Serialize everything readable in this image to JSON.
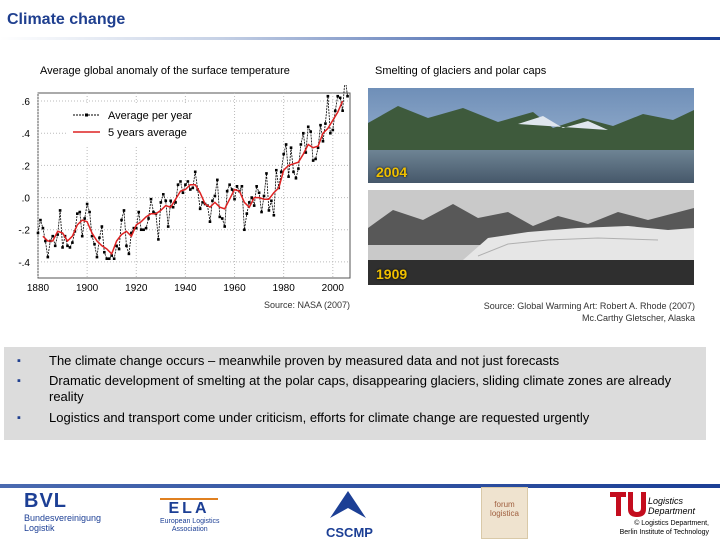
{
  "page": {
    "title": "Climate change"
  },
  "chart_data": {
    "type": "line",
    "title": "Average global anomaly of the surface temperature",
    "xlabel": "",
    "ylabel": "",
    "xlim": [
      1880,
      2007
    ],
    "ylim": [
      -0.5,
      0.65
    ],
    "xticks": [
      1880,
      1900,
      1920,
      1940,
      1960,
      1980,
      2000
    ],
    "xtick_labels": [
      "1880",
      "1900",
      "1920",
      "1940",
      "1960",
      "1980",
      "2000"
    ],
    "yticks": [
      0.6,
      0.4,
      0.2,
      0.0,
      -0.2,
      -0.4
    ],
    "ytick_labels": [
      ".6",
      ".4",
      ".2",
      ".0",
      "-.2",
      "-.4"
    ],
    "grid": true,
    "legend_position": "top-left",
    "series": [
      {
        "name": "Average per year",
        "style": "dotted-markers",
        "color": "#000000",
        "x": [
          1880,
          1881,
          1882,
          1883,
          1884,
          1885,
          1886,
          1887,
          1888,
          1889,
          1890,
          1891,
          1892,
          1893,
          1894,
          1895,
          1896,
          1897,
          1898,
          1899,
          1900,
          1901,
          1902,
          1903,
          1904,
          1905,
          1906,
          1907,
          1908,
          1909,
          1910,
          1911,
          1912,
          1913,
          1914,
          1915,
          1916,
          1917,
          1918,
          1919,
          1920,
          1921,
          1922,
          1923,
          1924,
          1925,
          1926,
          1927,
          1928,
          1929,
          1930,
          1931,
          1932,
          1933,
          1934,
          1935,
          1936,
          1937,
          1938,
          1939,
          1940,
          1941,
          1942,
          1943,
          1944,
          1945,
          1946,
          1947,
          1948,
          1949,
          1950,
          1951,
          1952,
          1953,
          1954,
          1955,
          1956,
          1957,
          1958,
          1959,
          1960,
          1961,
          1962,
          1963,
          1964,
          1965,
          1966,
          1967,
          1968,
          1969,
          1970,
          1971,
          1972,
          1973,
          1974,
          1975,
          1976,
          1977,
          1978,
          1979,
          1980,
          1981,
          1982,
          1983,
          1984,
          1985,
          1986,
          1987,
          1988,
          1989,
          1990,
          1991,
          1992,
          1993,
          1994,
          1995,
          1996,
          1997,
          1998,
          1999,
          2000,
          2001,
          2002,
          2003,
          2004,
          2005,
          2006
        ],
        "values": [
          -0.22,
          -0.14,
          -0.19,
          -0.27,
          -0.37,
          -0.27,
          -0.24,
          -0.3,
          -0.23,
          -0.08,
          -0.31,
          -0.24,
          -0.3,
          -0.31,
          -0.28,
          -0.21,
          -0.1,
          -0.09,
          -0.24,
          -0.13,
          -0.04,
          -0.09,
          -0.24,
          -0.29,
          -0.37,
          -0.25,
          -0.18,
          -0.34,
          -0.38,
          -0.38,
          -0.36,
          -0.38,
          -0.3,
          -0.32,
          -0.14,
          -0.08,
          -0.3,
          -0.35,
          -0.22,
          -0.19,
          -0.19,
          -0.09,
          -0.2,
          -0.2,
          -0.19,
          -0.13,
          -0.01,
          -0.09,
          -0.1,
          -0.26,
          -0.03,
          0.02,
          -0.02,
          -0.18,
          -0.02,
          -0.06,
          -0.03,
          0.08,
          0.1,
          0.03,
          0.08,
          0.1,
          0.05,
          0.06,
          0.16,
          0.05,
          -0.07,
          -0.03,
          -0.04,
          -0.05,
          -0.15,
          -0.02,
          0.01,
          0.11,
          -0.12,
          -0.13,
          -0.18,
          0.04,
          0.08,
          0.05,
          -0.01,
          0.07,
          0.04,
          0.07,
          -0.2,
          -0.1,
          -0.03,
          0.0,
          -0.05,
          0.07,
          0.03,
          -0.09,
          0.01,
          0.15,
          -0.08,
          -0.02,
          -0.11,
          0.17,
          0.06,
          0.16,
          0.27,
          0.33,
          0.13,
          0.31,
          0.16,
          0.12,
          0.18,
          0.33,
          0.4,
          0.28,
          0.44,
          0.41,
          0.23,
          0.24,
          0.31,
          0.45,
          0.35,
          0.46,
          0.63,
          0.4,
          0.42,
          0.54,
          0.63,
          0.62,
          0.54,
          0.75,
          0.63
        ]
      },
      {
        "name": "5 years average",
        "style": "solid",
        "color": "#dd2222",
        "x": [
          1882,
          1884,
          1886,
          1888,
          1890,
          1892,
          1894,
          1896,
          1898,
          1900,
          1902,
          1904,
          1906,
          1908,
          1910,
          1912,
          1914,
          1916,
          1918,
          1920,
          1922,
          1924,
          1926,
          1928,
          1930,
          1932,
          1934,
          1936,
          1938,
          1940,
          1942,
          1944,
          1946,
          1948,
          1950,
          1952,
          1954,
          1956,
          1958,
          1960,
          1962,
          1964,
          1966,
          1968,
          1970,
          1972,
          1974,
          1976,
          1978,
          1980,
          1982,
          1984,
          1986,
          1988,
          1990,
          1992,
          1994,
          1996,
          1998,
          2000,
          2002,
          2004
        ],
        "values": [
          -0.24,
          -0.27,
          -0.27,
          -0.21,
          -0.22,
          -0.27,
          -0.24,
          -0.17,
          -0.14,
          -0.15,
          -0.22,
          -0.27,
          -0.3,
          -0.32,
          -0.35,
          -0.27,
          -0.23,
          -0.21,
          -0.24,
          -0.17,
          -0.15,
          -0.12,
          -0.1,
          -0.1,
          -0.08,
          -0.05,
          -0.06,
          -0.01,
          0.04,
          0.05,
          0.08,
          0.08,
          0.03,
          -0.04,
          -0.06,
          -0.03,
          -0.06,
          -0.07,
          -0.01,
          0.05,
          0.04,
          -0.03,
          -0.06,
          0.0,
          0.0,
          -0.01,
          -0.01,
          0.03,
          0.06,
          0.17,
          0.2,
          0.21,
          0.22,
          0.27,
          0.33,
          0.31,
          0.32,
          0.4,
          0.43,
          0.48,
          0.53,
          0.6
        ]
      }
    ],
    "source": "Source: NASA (2007)"
  },
  "photos": {
    "title": "Smelting of glaciers and polar caps",
    "top_year": "2004",
    "bottom_year": "1909",
    "source_line1": "Source: Global Warming Art: Robert A. Rhode (2007)",
    "source_line2": "Mc.Carthy Gletscher, Alaska"
  },
  "bullets": [
    {
      "mark": "▪",
      "text": "The climate change occurs – meanwhile proven by measured data and not just forecasts"
    },
    {
      "mark": "▪",
      "text": "Dramatic development of smelting at the polar caps, disappearing glaciers, sliding climate zones are already reality"
    },
    {
      "mark": "▪",
      "text": "Logistics and transport come under criticism, efforts for climate change are requested urgently"
    }
  ],
  "footer": {
    "bvl_logo": "BVL",
    "bvl_sub1": "Bundesvereinigung",
    "bvl_sub2": "Logistik",
    "ela_logo": "ELA",
    "ela_sub1": "European Logistics",
    "ela_sub2": "Association",
    "cscmp_logo": "CSCMP",
    "forum_line1": "forum",
    "forum_line2": "logistica",
    "tu_line1": "Logistics",
    "tu_line2": "Department",
    "tu_copy1": "© Logistics Department,",
    "tu_copy2": "Berlin Institute of Technology"
  }
}
